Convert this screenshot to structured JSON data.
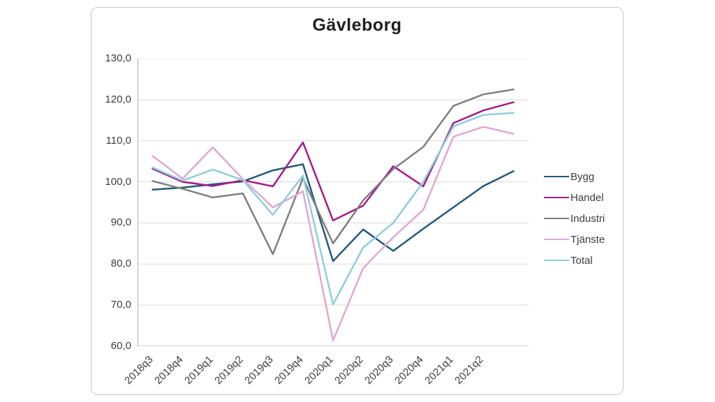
{
  "chart_data": {
    "type": "line",
    "title": "Gävleborg",
    "categories": [
      "2018q3",
      "2018q4",
      "2019q1",
      "2019q2",
      "2019q3",
      "2019q4",
      "2020q1",
      "2020q2",
      "2020q3",
      "2020q4",
      "2021q1",
      "2021q2",
      ""
    ],
    "series": [
      {
        "name": "Bygg",
        "color": "#205a77",
        "values": [
          98.1,
          98.6,
          99.4,
          100.1,
          102.8,
          104.3,
          80.7,
          88.4,
          83.2,
          88.6,
          93.8,
          99.0,
          102.6
        ]
      },
      {
        "name": "Handel",
        "color": "#a21c8c",
        "values": [
          103.2,
          100.0,
          99.0,
          100.4,
          98.9,
          109.6,
          90.6,
          94.2,
          103.8,
          98.9,
          114.3,
          117.4,
          119.4
        ]
      },
      {
        "name": "Industri",
        "color": "#7f7f7f",
        "values": [
          100.2,
          98.3,
          96.2,
          97.2,
          82.4,
          100.9,
          85.0,
          95.5,
          103.1,
          108.5,
          118.5,
          121.3,
          122.5
        ]
      },
      {
        "name": "Tjänste",
        "color": "#dea8d2",
        "values": [
          106.3,
          100.8,
          108.4,
          100.7,
          93.8,
          97.7,
          61.4,
          79.0,
          86.5,
          93.2,
          111.0,
          113.4,
          111.7
        ]
      },
      {
        "name": "Total",
        "color": "#8eceda",
        "values": [
          103.5,
          100.3,
          103.0,
          100.4,
          92.0,
          101.5,
          70.2,
          84.0,
          90.0,
          100.0,
          113.5,
          116.3,
          116.8
        ]
      }
    ],
    "ylim": [
      60,
      130
    ],
    "ytick_step": 10,
    "ytick_labels": [
      "130,0",
      "120,0",
      "110,0",
      "100,0",
      "90,0",
      "80,0",
      "70,0",
      "60,0"
    ],
    "grid": "horizontal",
    "legend_position": "right",
    "x_label_rotation": -45
  },
  "colors": {
    "grid": "#d9d9d9",
    "axis": "#adadad",
    "frame": "#c6c6c6",
    "label_text": "#3d3d3d",
    "title_text": "#1f1f1f"
  }
}
